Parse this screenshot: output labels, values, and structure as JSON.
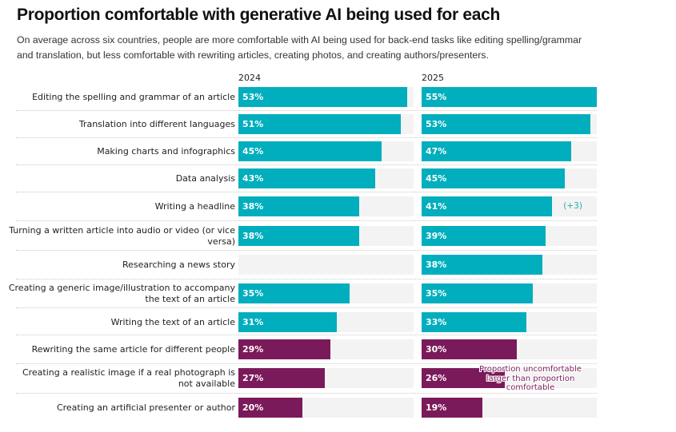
{
  "chart_data": {
    "type": "bar",
    "orientation": "horizontal",
    "title": "Proportion comfortable with generative AI being used for each",
    "subtitle": "On average across six countries, people are more comfortable with AI being used for back-end tasks like editing spelling/grammar and translation, but less comfortable with rewriting articles, creating photos, and creating authors/presenters.",
    "xlim": [
      0,
      55
    ],
    "unit": "%",
    "categories": [
      "Editing the spelling and grammar of an article",
      "Translation into different languages",
      "Making charts and infographics",
      "Data analysis",
      "Writing a headline",
      "Turning a written article into audio or video (or vice versa)",
      "Researching a news story",
      "Creating a generic image/illustration to accompany the text of an article",
      "Writing the text of an article",
      "Rewriting the same article for different people",
      "Creating a realistic image if a real photograph is not available",
      "Creating an artificial presenter or author"
    ],
    "series": [
      {
        "name": "2024",
        "values": [
          53,
          51,
          45,
          43,
          38,
          38,
          null,
          35,
          31,
          29,
          27,
          20
        ]
      },
      {
        "name": "2025",
        "values": [
          55,
          53,
          47,
          45,
          41,
          39,
          38,
          35,
          33,
          30,
          26,
          19
        ]
      }
    ],
    "uncomfortable_larger": [
      false,
      false,
      false,
      false,
      false,
      false,
      false,
      false,
      false,
      true,
      true,
      true
    ],
    "changes": [
      {
        "category_index": 4,
        "series": "2025",
        "text": "(+3)"
      }
    ],
    "annotation": {
      "text": "Proportion uncomfortable larger than proportion comfortable",
      "category_index": 10,
      "series": "2025"
    },
    "colors": {
      "comfortable": "#00aebd",
      "uncomfortable": "#7b1a5a",
      "track": "#f3f3f3",
      "change": "#2aa8b3"
    },
    "grid": false,
    "legend": "none"
  }
}
